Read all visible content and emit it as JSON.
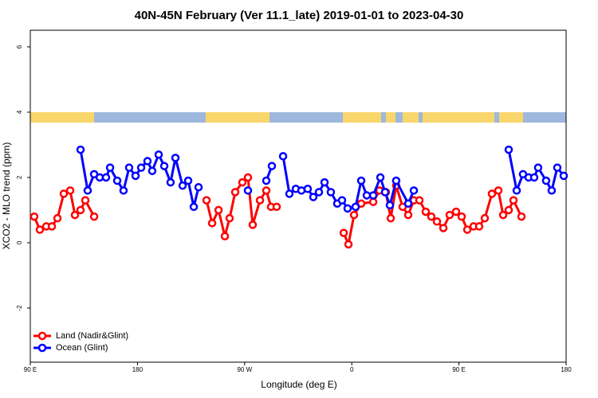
{
  "chart_data": {
    "type": "line",
    "title": "40N-45N February (Ver 11.1_late)   2019-01-01 to 2023-04-30",
    "x_label": "Longitude (deg E)",
    "y_label": "XCO2 - MLO trend (ppm)",
    "xlim": [
      90,
      540
    ],
    "ylim": [
      -3.66,
      6.51
    ],
    "xticks": [
      {
        "value": 90,
        "label": "90 E"
      },
      180,
      {
        "value": 270,
        "label": "90 W"
      },
      {
        "value": 360,
        "label": "0"
      },
      {
        "value": 450,
        "label": "90 E"
      },
      {
        "value": 540,
        "label": "180"
      }
    ],
    "yticks": [
      -2,
      0,
      2,
      4,
      6
    ],
    "legend": "bottom-left",
    "series": [
      {
        "name": "Land (Nadir&Glint)",
        "color": "#ff0000",
        "x": [
          93.3,
          98,
          103.4,
          108.1,
          112.8,
          118.1,
          123.5,
          127.5,
          132.2,
          136.2,
          143.6,
          null,
          238,
          242.7,
          248.1,
          253.4,
          257.4,
          262.1,
          268.1,
          272.8,
          276.8,
          282.9,
          288.2,
          292.2,
          296.9,
          null,
          353.2,
          357.2,
          361.9,
          367.9,
          378,
          383.3,
          388.6,
          392.7,
          397.3,
          402.7,
          407.4,
          412.1,
          416.8,
          422.1,
          426.8,
          431.5,
          436.9,
          442.2,
          447.6,
          452.3,
          457,
          462.3,
          467,
          471.7,
          477.7,
          483.1,
          487.1,
          491.8,
          495.8,
          502.5
        ],
        "values": [
          0.8,
          0.4,
          0.5,
          0.5,
          0.75,
          1.5,
          1.6,
          0.85,
          1.0,
          1.3,
          0.8,
          null,
          1.3,
          0.6,
          1.0,
          0.2,
          0.75,
          1.55,
          1.85,
          2.0,
          0.55,
          1.3,
          1.6,
          1.1,
          1.1,
          null,
          0.3,
          -0.05,
          0.85,
          1.2,
          1.25,
          1.6,
          1.55,
          0.75,
          1.75,
          1.1,
          0.85,
          1.3,
          1.3,
          0.95,
          0.8,
          0.65,
          0.45,
          0.85,
          0.95,
          0.8,
          0.4,
          0.5,
          0.5,
          0.75,
          1.5,
          1.6,
          0.85,
          1.0,
          1.3,
          0.8
        ]
      },
      {
        "name": "Ocean (Glint)",
        "color": "#0000ff",
        "x": [
          132.2,
          138.2,
          143.6,
          148.3,
          153.6,
          157,
          163,
          168.3,
          173,
          178.4,
          183.1,
          188.4,
          192.4,
          197.8,
          202.5,
          207.8,
          211.9,
          217.9,
          222.6,
          227.3,
          231.3,
          null,
          272.8,
          null,
          288.2,
          292.9,
          null,
          302.3,
          307.6,
          313,
          317.7,
          323,
          327.7,
          332.4,
          337.1,
          342.4,
          347.8,
          351.8,
          356.5,
          363.2,
          367.9,
          372.6,
          378,
          384,
          388,
          392,
          397.3,
          407.4,
          412.1,
          null,
          491.8,
          498.5,
          503.8,
          508.5,
          513.2,
          516.5,
          523.2,
          527.9,
          532.6,
          538
        ],
        "values": [
          2.85,
          1.6,
          2.1,
          2.0,
          2.0,
          2.3,
          1.9,
          1.6,
          2.3,
          2.05,
          2.3,
          2.5,
          2.2,
          2.7,
          2.35,
          1.85,
          2.6,
          1.75,
          1.9,
          1.1,
          1.7,
          null,
          1.6,
          null,
          1.9,
          2.35,
          null,
          2.65,
          1.5,
          1.65,
          1.6,
          1.65,
          1.4,
          1.55,
          1.85,
          1.55,
          1.2,
          1.3,
          1.05,
          1.1,
          1.9,
          1.45,
          1.45,
          2.0,
          1.55,
          1.15,
          1.9,
          1.2,
          1.6,
          null,
          2.85,
          1.6,
          2.1,
          2.0,
          2.0,
          2.3,
          1.9,
          1.6,
          2.3,
          2.05
        ]
      }
    ]
  }
}
